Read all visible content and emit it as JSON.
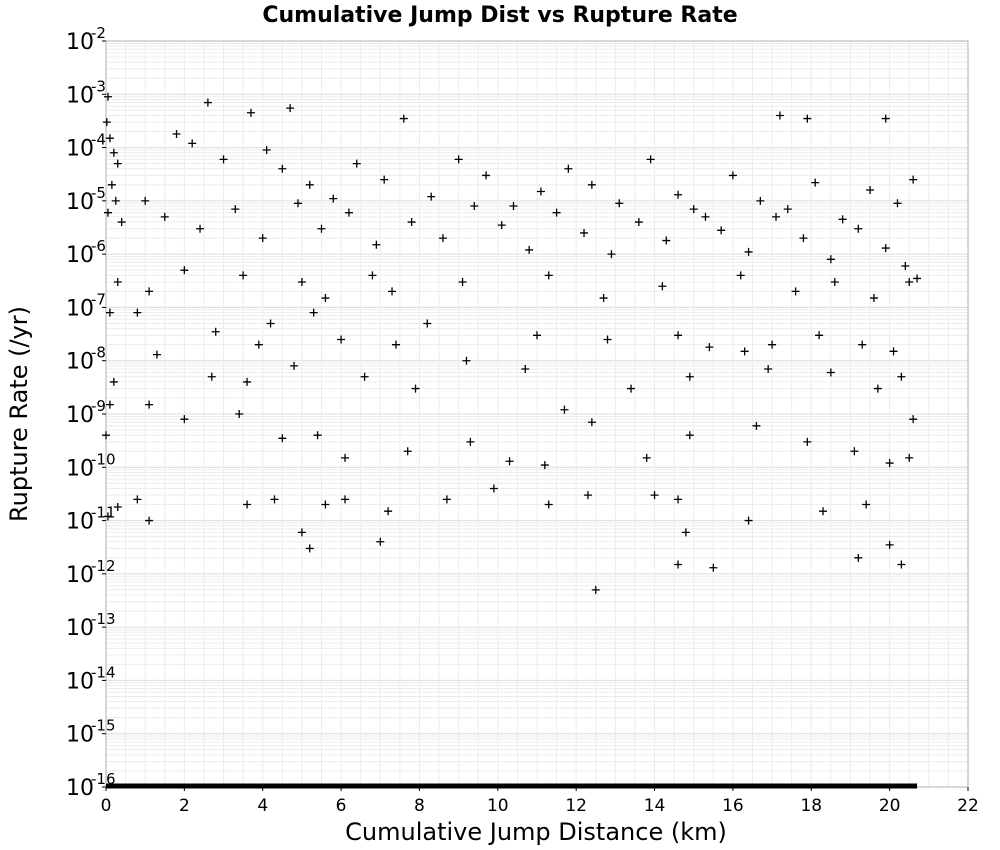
{
  "chart_data": {
    "type": "scatter",
    "title": "Cumulative Jump Dist vs Rupture Rate",
    "xlabel": "Cumulative Jump Distance (km)",
    "ylabel": "Rupture Rate (/yr)",
    "xlim": [
      0,
      22
    ],
    "ylim": [
      1e-16,
      0.01
    ],
    "yscale": "log",
    "grid": true,
    "marker": "+",
    "marker_color": "#000000",
    "x_ticks": [
      "0",
      "2",
      "4",
      "6",
      "8",
      "10",
      "12",
      "14",
      "16",
      "18",
      "20",
      "22"
    ],
    "y_ticks": [
      {
        "base": "10",
        "exp": "-2"
      },
      {
        "base": "10",
        "exp": "-3"
      },
      {
        "base": "10",
        "exp": "-4"
      },
      {
        "base": "10",
        "exp": "-5"
      },
      {
        "base": "10",
        "exp": "-6"
      },
      {
        "base": "10",
        "exp": "-7"
      },
      {
        "base": "10",
        "exp": "-8"
      },
      {
        "base": "10",
        "exp": "-9"
      },
      {
        "base": "10",
        "exp": "-10"
      },
      {
        "base": "10",
        "exp": "-11"
      },
      {
        "base": "10",
        "exp": "-12"
      },
      {
        "base": "10",
        "exp": "-13"
      },
      {
        "base": "10",
        "exp": "-14"
      },
      {
        "base": "10",
        "exp": "-15"
      },
      {
        "base": "10",
        "exp": "-16"
      }
    ],
    "points": [
      [
        2.6,
        0.0007
      ],
      [
        3.7,
        0.00045
      ],
      [
        4.7,
        0.00055
      ],
      [
        17.2,
        0.0004
      ],
      [
        17.9,
        0.00035
      ],
      [
        19.9,
        0.00035
      ],
      [
        7.6,
        0.00035
      ],
      [
        0.05,
        0.0009
      ],
      [
        0.02,
        0.0003
      ],
      [
        0.1,
        0.00015
      ],
      [
        0.2,
        8e-05
      ],
      [
        0.3,
        5e-05
      ],
      [
        0.15,
        2e-05
      ],
      [
        0.25,
        1e-05
      ],
      [
        0.05,
        6e-06
      ],
      [
        0.4,
        4e-06
      ],
      [
        1.8,
        0.00018
      ],
      [
        2.2,
        0.00012
      ],
      [
        3.0,
        6e-05
      ],
      [
        4.1,
        9e-05
      ],
      [
        4.5,
        4e-05
      ],
      [
        5.2,
        2e-05
      ],
      [
        5.8,
        1.1e-05
      ],
      [
        6.4,
        5e-05
      ],
      [
        7.1,
        2.5e-05
      ],
      [
        8.3,
        1.2e-05
      ],
      [
        9.0,
        6e-05
      ],
      [
        9.7,
        3e-05
      ],
      [
        10.4,
        8e-06
      ],
      [
        11.1,
        1.5e-05
      ],
      [
        11.8,
        4e-05
      ],
      [
        12.4,
        2e-05
      ],
      [
        13.1,
        9e-06
      ],
      [
        13.9,
        6e-05
      ],
      [
        14.6,
        1.3e-05
      ],
      [
        15.3,
        5e-06
      ],
      [
        16.0,
        3e-05
      ],
      [
        16.7,
        1e-05
      ],
      [
        17.4,
        7e-06
      ],
      [
        18.1,
        2.2e-05
      ],
      [
        18.8,
        4.5e-06
      ],
      [
        19.5,
        1.6e-05
      ],
      [
        20.2,
        9e-06
      ],
      [
        20.6,
        2.5e-05
      ],
      [
        1.0,
        1e-05
      ],
      [
        1.5,
        5e-06
      ],
      [
        2.4,
        3e-06
      ],
      [
        3.3,
        7e-06
      ],
      [
        4.0,
        2e-06
      ],
      [
        4.9,
        9e-06
      ],
      [
        5.5,
        3e-06
      ],
      [
        6.2,
        6e-06
      ],
      [
        6.9,
        1.5e-06
      ],
      [
        7.8,
        4e-06
      ],
      [
        8.6,
        2e-06
      ],
      [
        9.4,
        8e-06
      ],
      [
        10.1,
        3.5e-06
      ],
      [
        10.8,
        1.2e-06
      ],
      [
        11.5,
        6e-06
      ],
      [
        12.2,
        2.5e-06
      ],
      [
        12.9,
        1e-06
      ],
      [
        13.6,
        4e-06
      ],
      [
        14.3,
        1.8e-06
      ],
      [
        15.0,
        7e-06
      ],
      [
        15.7,
        2.8e-06
      ],
      [
        16.4,
        1.1e-06
      ],
      [
        17.1,
        5e-06
      ],
      [
        17.8,
        2e-06
      ],
      [
        18.5,
        8e-07
      ],
      [
        19.2,
        3e-06
      ],
      [
        19.9,
        1.3e-06
      ],
      [
        20.4,
        6e-07
      ],
      [
        20.7,
        3.5e-07
      ],
      [
        0.3,
        3e-07
      ],
      [
        1.1,
        2e-07
      ],
      [
        2.0,
        5e-07
      ],
      [
        3.5,
        4e-07
      ],
      [
        5.0,
        3e-07
      ],
      [
        5.6,
        1.5e-07
      ],
      [
        6.8,
        4e-07
      ],
      [
        7.3,
        2e-07
      ],
      [
        9.1,
        3e-07
      ],
      [
        11.3,
        4e-07
      ],
      [
        12.7,
        1.5e-07
      ],
      [
        14.2,
        2.5e-07
      ],
      [
        16.2,
        4e-07
      ],
      [
        17.6,
        2e-07
      ],
      [
        18.6,
        3e-07
      ],
      [
        19.6,
        1.5e-07
      ],
      [
        20.5,
        3e-07
      ],
      [
        0.1,
        8e-08
      ],
      [
        0.8,
        8e-08
      ],
      [
        2.8,
        3.5e-08
      ],
      [
        3.9,
        2e-08
      ],
      [
        4.2,
        5e-08
      ],
      [
        5.3,
        8e-08
      ],
      [
        6.0,
        2.5e-08
      ],
      [
        7.4,
        2e-08
      ],
      [
        8.2,
        5e-08
      ],
      [
        9.2,
        1e-08
      ],
      [
        11.0,
        3e-08
      ],
      [
        12.8,
        2.5e-08
      ],
      [
        14.6,
        3e-08
      ],
      [
        15.4,
        1.8e-08
      ],
      [
        16.3,
        1.5e-08
      ],
      [
        17.0,
        2e-08
      ],
      [
        18.2,
        3e-08
      ],
      [
        19.3,
        2e-08
      ],
      [
        20.1,
        1.5e-08
      ],
      [
        0.2,
        4e-09
      ],
      [
        1.3,
        1.3e-08
      ],
      [
        2.7,
        5e-09
      ],
      [
        3.6,
        4e-09
      ],
      [
        4.8,
        8e-09
      ],
      [
        6.6,
        5e-09
      ],
      [
        7.9,
        3e-09
      ],
      [
        10.7,
        7e-09
      ],
      [
        13.4,
        3e-09
      ],
      [
        14.9,
        5e-09
      ],
      [
        16.9,
        7e-09
      ],
      [
        18.5,
        6e-09
      ],
      [
        19.7,
        3e-09
      ],
      [
        20.3,
        5e-09
      ],
      [
        0.1,
        1.5e-09
      ],
      [
        1.1,
        1.5e-09
      ],
      [
        2.0,
        8e-10
      ],
      [
        3.4,
        1e-09
      ],
      [
        4.5,
        3.5e-10
      ],
      [
        5.4,
        4e-10
      ],
      [
        6.1,
        1.5e-10
      ],
      [
        7.7,
        2e-10
      ],
      [
        9.3,
        3e-10
      ],
      [
        11.7,
        1.2e-09
      ],
      [
        12.4,
        7e-10
      ],
      [
        13.8,
        1.5e-10
      ],
      [
        14.9,
        4e-10
      ],
      [
        16.6,
        6e-10
      ],
      [
        17.9,
        3e-10
      ],
      [
        19.1,
        2e-10
      ],
      [
        20.6,
        8e-10
      ],
      [
        0.3,
        1.8e-11
      ],
      [
        0.8,
        2.5e-11
      ],
      [
        1.1,
        1e-11
      ],
      [
        3.6,
        2e-11
      ],
      [
        4.3,
        2.5e-11
      ],
      [
        5.0,
        6e-12
      ],
      [
        5.6,
        2e-11
      ],
      [
        6.1,
        2.5e-11
      ],
      [
        7.2,
        1.5e-11
      ],
      [
        8.7,
        2.5e-11
      ],
      [
        9.9,
        4e-11
      ],
      [
        11.3,
        2e-11
      ],
      [
        12.3,
        3e-11
      ],
      [
        14.0,
        3e-11
      ],
      [
        14.6,
        2.5e-11
      ],
      [
        16.4,
        1e-11
      ],
      [
        18.3,
        1.5e-11
      ],
      [
        19.4,
        2e-11
      ],
      [
        5.2,
        3e-12
      ],
      [
        7.0,
        4e-12
      ],
      [
        14.8,
        6e-12
      ],
      [
        19.2,
        2e-12
      ],
      [
        20.0,
        3.5e-12
      ],
      [
        14.6,
        1.5e-12
      ],
      [
        15.5,
        1.3e-12
      ],
      [
        20.3,
        1.5e-12
      ],
      [
        12.5,
        5e-13
      ],
      [
        0.0,
        4e-10
      ],
      [
        0.05,
        1.2e-11
      ],
      [
        10.3,
        1.3e-10
      ],
      [
        11.2,
        1.1e-10
      ],
      [
        20.0,
        1.2e-10
      ],
      [
        20.5,
        1.5e-10
      ]
    ],
    "baseline": {
      "x_start": 0,
      "x_end": 20.7,
      "y": 1e-16
    }
  }
}
